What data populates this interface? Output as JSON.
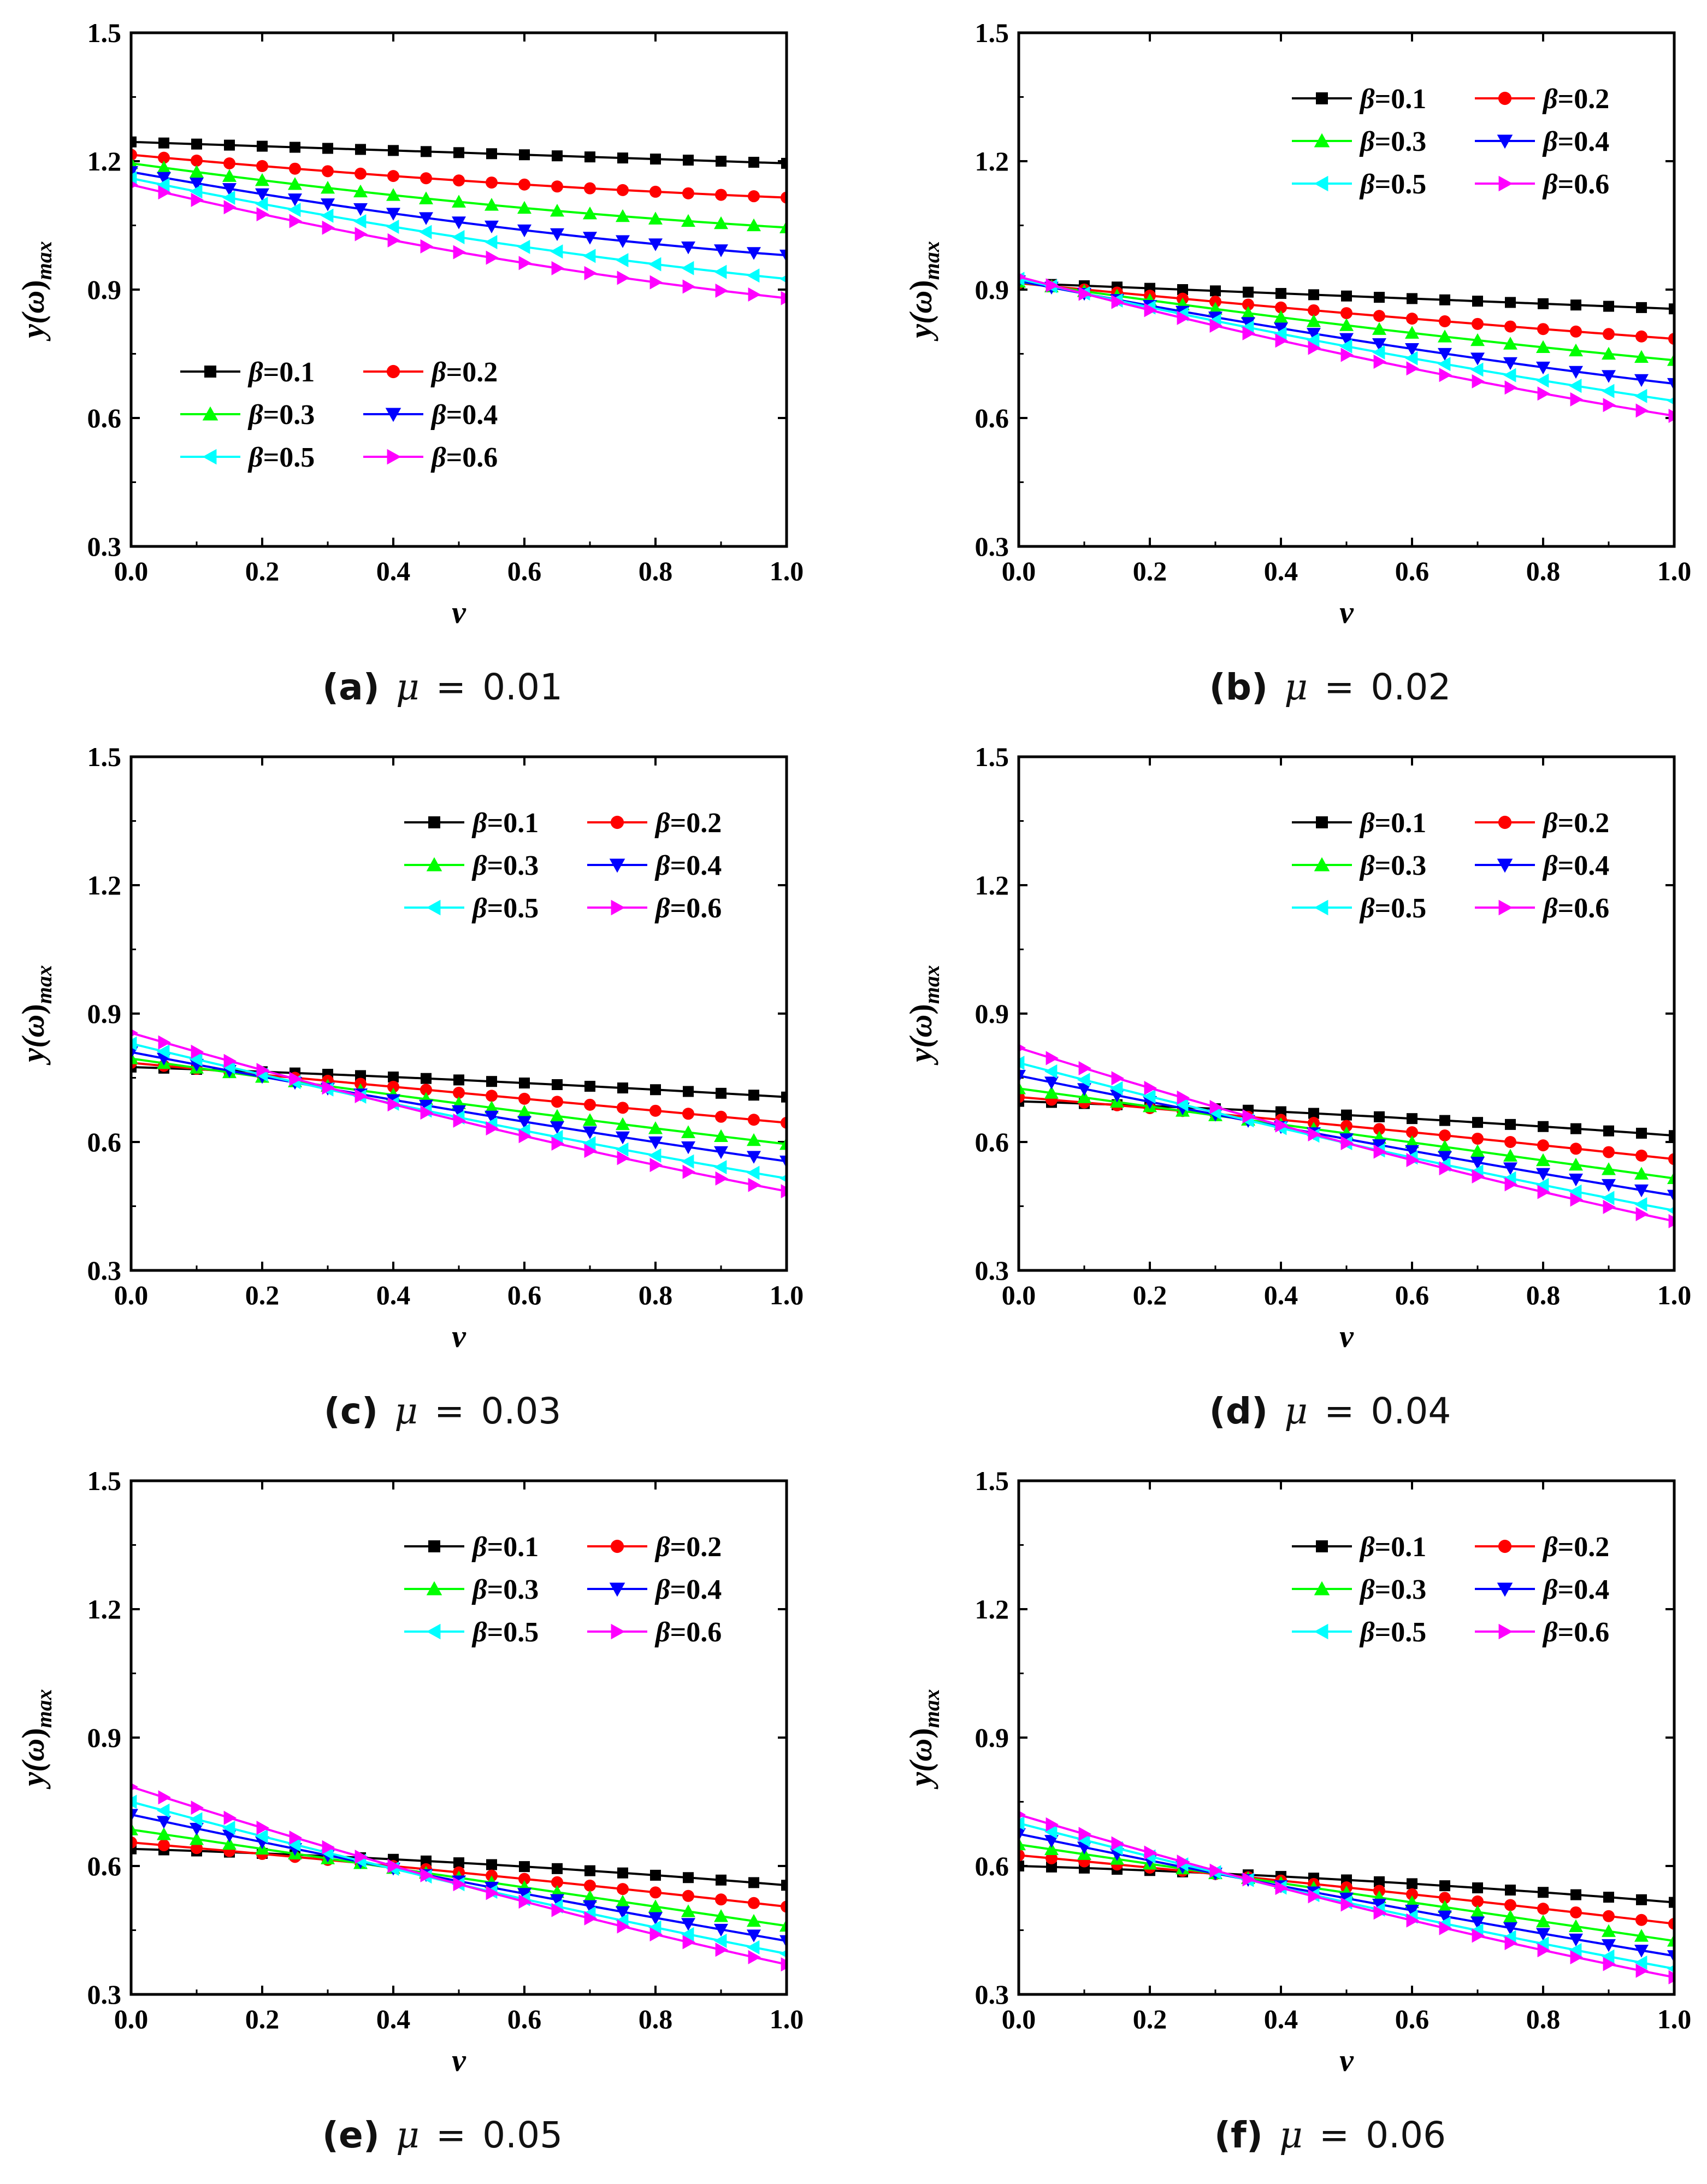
{
  "figure": {
    "series_colors": [
      "#000000",
      "#ff0000",
      "#00ff00",
      "#0000ff",
      "#00ffff",
      "#ff00ff"
    ],
    "marker_shapes": [
      "square",
      "circle",
      "triangle-up",
      "triangle-down",
      "triangle-left",
      "triangle-right"
    ]
  },
  "chart_data": [
    {
      "type": "line",
      "panel": "a",
      "caption": {
        "letter": "(a)",
        "mu_symbol": "μ",
        "equals": "=",
        "mu_value": "0.01"
      },
      "xlabel": "v",
      "ylabel": {
        "main": "y(",
        "omega": "ω",
        "close": ")",
        "sub": "max"
      },
      "xlim": [
        0,
        1
      ],
      "ylim": [
        0.3,
        1.5
      ],
      "xticks": [
        0,
        0.2,
        0.4,
        0.6,
        0.8,
        1.0
      ],
      "xtick_labels": [
        "0.0",
        "0.2",
        "0.4",
        "0.6",
        "0.8",
        "1.0"
      ],
      "yticks": [
        0.3,
        0.6,
        0.9,
        1.2,
        1.5
      ],
      "ytick_labels": [
        "0.3",
        "0.6",
        "0.9",
        "1.2",
        "1.5"
      ],
      "legend_position": "lower-left",
      "x": [
        0,
        0.05,
        0.1,
        0.15,
        0.2,
        0.25,
        0.3,
        0.35,
        0.4,
        0.45,
        0.5,
        0.55,
        0.6,
        0.65,
        0.7,
        0.75,
        0.8,
        0.85,
        0.9,
        0.95,
        1.0
      ],
      "series": [
        {
          "name": "β=0.1",
          "symbol": "β",
          "value_text": "=0.1",
          "start": 1.245,
          "end": 1.195,
          "curve": 0.0
        },
        {
          "name": "β=0.2",
          "symbol": "β",
          "value_text": "=0.2",
          "start": 1.215,
          "end": 1.115,
          "curve": 0.01
        },
        {
          "name": "β=0.3",
          "symbol": "β",
          "value_text": "=0.3",
          "start": 1.195,
          "end": 1.045,
          "curve": 0.015
        },
        {
          "name": "β=0.4",
          "symbol": "β",
          "value_text": "=0.4",
          "start": 1.175,
          "end": 0.98,
          "curve": 0.02
        },
        {
          "name": "β=0.5",
          "symbol": "β",
          "value_text": "=0.5",
          "start": 1.16,
          "end": 0.925,
          "curve": 0.02
        },
        {
          "name": "β=0.6",
          "symbol": "β",
          "value_text": "=0.6",
          "start": 1.145,
          "end": 0.88,
          "curve": 0.025
        }
      ]
    },
    {
      "type": "line",
      "panel": "b",
      "caption": {
        "letter": "(b)",
        "mu_symbol": "μ",
        "equals": "=",
        "mu_value": "0.02"
      },
      "xlabel": "v",
      "ylabel": {
        "main": "y(",
        "omega": "ω",
        "close": ")",
        "sub": "max"
      },
      "xlim": [
        0,
        1
      ],
      "ylim": [
        0.3,
        1.5
      ],
      "xticks": [
        0,
        0.2,
        0.4,
        0.6,
        0.8,
        1.0
      ],
      "xtick_labels": [
        "0.0",
        "0.2",
        "0.4",
        "0.6",
        "0.8",
        "1.0"
      ],
      "yticks": [
        0.3,
        0.6,
        0.9,
        1.2,
        1.5
      ],
      "ytick_labels": [
        "0.3",
        "0.6",
        "0.9",
        "1.2",
        "1.5"
      ],
      "legend_position": "top-right",
      "x": [
        0,
        0.05,
        0.1,
        0.15,
        0.2,
        0.25,
        0.3,
        0.35,
        0.4,
        0.45,
        0.5,
        0.55,
        0.6,
        0.65,
        0.7,
        0.75,
        0.8,
        0.85,
        0.9,
        0.95,
        1.0
      ],
      "series": [
        {
          "name": "β=0.1",
          "symbol": "β",
          "value_text": "=0.1",
          "start": 0.915,
          "end": 0.855,
          "curve": 0.0
        },
        {
          "name": "β=0.2",
          "symbol": "β",
          "value_text": "=0.2",
          "start": 0.915,
          "end": 0.785,
          "curve": 0.005
        },
        {
          "name": "β=0.3",
          "symbol": "β",
          "value_text": "=0.3",
          "start": 0.918,
          "end": 0.735,
          "curve": 0.01
        },
        {
          "name": "β=0.4",
          "symbol": "β",
          "value_text": "=0.4",
          "start": 0.92,
          "end": 0.68,
          "curve": 0.015
        },
        {
          "name": "β=0.5",
          "symbol": "β",
          "value_text": "=0.5",
          "start": 0.925,
          "end": 0.64,
          "curve": 0.015
        },
        {
          "name": "β=0.6",
          "symbol": "β",
          "value_text": "=0.6",
          "start": 0.93,
          "end": 0.605,
          "curve": 0.02
        }
      ]
    },
    {
      "type": "line",
      "panel": "c",
      "caption": {
        "letter": "(c)",
        "mu_symbol": "μ",
        "equals": "=",
        "mu_value": "0.03"
      },
      "xlabel": "v",
      "ylabel": {
        "main": "y(",
        "omega": "ω",
        "close": ")",
        "sub": "max"
      },
      "xlim": [
        0,
        1
      ],
      "ylim": [
        0.3,
        1.5
      ],
      "xticks": [
        0,
        0.2,
        0.4,
        0.6,
        0.8,
        1.0
      ],
      "xtick_labels": [
        "0.0",
        "0.2",
        "0.4",
        "0.6",
        "0.8",
        "1.0"
      ],
      "yticks": [
        0.3,
        0.6,
        0.9,
        1.2,
        1.5
      ],
      "ytick_labels": [
        "0.3",
        "0.6",
        "0.9",
        "1.2",
        "1.5"
      ],
      "legend_position": "top-right",
      "x": [
        0,
        0.05,
        0.1,
        0.15,
        0.2,
        0.25,
        0.3,
        0.35,
        0.4,
        0.45,
        0.5,
        0.55,
        0.6,
        0.65,
        0.7,
        0.75,
        0.8,
        0.85,
        0.9,
        0.95,
        1.0
      ],
      "series": [
        {
          "name": "β=0.1",
          "symbol": "β",
          "value_text": "=0.1",
          "start": 0.775,
          "end": 0.705,
          "curve": -0.005
        },
        {
          "name": "β=0.2",
          "symbol": "β",
          "value_text": "=0.2",
          "start": 0.785,
          "end": 0.645,
          "curve": 0.0
        },
        {
          "name": "β=0.3",
          "symbol": "β",
          "value_text": "=0.3",
          "start": 0.795,
          "end": 0.595,
          "curve": 0.005
        },
        {
          "name": "β=0.4",
          "symbol": "β",
          "value_text": "=0.4",
          "start": 0.81,
          "end": 0.555,
          "curve": 0.01
        },
        {
          "name": "β=0.5",
          "symbol": "β",
          "value_text": "=0.5",
          "start": 0.83,
          "end": 0.515,
          "curve": 0.015
        },
        {
          "name": "β=0.6",
          "symbol": "β",
          "value_text": "=0.6",
          "start": 0.855,
          "end": 0.485,
          "curve": 0.02
        }
      ]
    },
    {
      "type": "line",
      "panel": "d",
      "caption": {
        "letter": "(d)",
        "mu_symbol": "μ",
        "equals": "=",
        "mu_value": "0.04"
      },
      "xlabel": "v",
      "ylabel": {
        "main": "y(",
        "omega": "ω",
        "close": ")",
        "sub": "max"
      },
      "xlim": [
        0,
        1
      ],
      "ylim": [
        0.3,
        1.5
      ],
      "xticks": [
        0,
        0.2,
        0.4,
        0.6,
        0.8,
        1.0
      ],
      "xtick_labels": [
        "0.0",
        "0.2",
        "0.4",
        "0.6",
        "0.8",
        "1.0"
      ],
      "yticks": [
        0.3,
        0.6,
        0.9,
        1.2,
        1.5
      ],
      "ytick_labels": [
        "0.3",
        "0.6",
        "0.9",
        "1.2",
        "1.5"
      ],
      "legend_position": "top-right",
      "x": [
        0,
        0.05,
        0.1,
        0.15,
        0.2,
        0.25,
        0.3,
        0.35,
        0.4,
        0.45,
        0.5,
        0.55,
        0.6,
        0.65,
        0.7,
        0.75,
        0.8,
        0.85,
        0.9,
        0.95,
        1.0
      ],
      "series": [
        {
          "name": "β=0.1",
          "symbol": "β",
          "value_text": "=0.1",
          "start": 0.695,
          "end": 0.615,
          "curve": -0.008
        },
        {
          "name": "β=0.2",
          "symbol": "β",
          "value_text": "=0.2",
          "start": 0.705,
          "end": 0.56,
          "curve": -0.005
        },
        {
          "name": "β=0.3",
          "symbol": "β",
          "value_text": "=0.3",
          "start": 0.725,
          "end": 0.515,
          "curve": 0.0
        },
        {
          "name": "β=0.4",
          "symbol": "β",
          "value_text": "=0.4",
          "start": 0.755,
          "end": 0.475,
          "curve": 0.008
        },
        {
          "name": "β=0.5",
          "symbol": "β",
          "value_text": "=0.5",
          "start": 0.785,
          "end": 0.44,
          "curve": 0.015
        },
        {
          "name": "β=0.6",
          "symbol": "β",
          "value_text": "=0.6",
          "start": 0.82,
          "end": 0.415,
          "curve": 0.02
        }
      ]
    },
    {
      "type": "line",
      "panel": "e",
      "caption": {
        "letter": "(e)",
        "mu_symbol": "μ",
        "equals": "=",
        "mu_value": "0.05"
      },
      "xlabel": "v",
      "ylabel": {
        "main": "y(",
        "omega": "ω",
        "close": ")",
        "sub": "max"
      },
      "xlim": [
        0,
        1
      ],
      "ylim": [
        0.3,
        1.5
      ],
      "xticks": [
        0,
        0.2,
        0.4,
        0.6,
        0.8,
        1.0
      ],
      "xtick_labels": [
        "0.0",
        "0.2",
        "0.4",
        "0.6",
        "0.8",
        "1.0"
      ],
      "yticks": [
        0.3,
        0.6,
        0.9,
        1.2,
        1.5
      ],
      "ytick_labels": [
        "0.3",
        "0.6",
        "0.9",
        "1.2",
        "1.5"
      ],
      "legend_position": "top-right",
      "x": [
        0,
        0.05,
        0.1,
        0.15,
        0.2,
        0.25,
        0.3,
        0.35,
        0.4,
        0.45,
        0.5,
        0.55,
        0.6,
        0.65,
        0.7,
        0.75,
        0.8,
        0.85,
        0.9,
        0.95,
        1.0
      ],
      "series": [
        {
          "name": "β=0.1",
          "symbol": "β",
          "value_text": "=0.1",
          "start": 0.64,
          "end": 0.555,
          "curve": -0.01
        },
        {
          "name": "β=0.2",
          "symbol": "β",
          "value_text": "=0.2",
          "start": 0.655,
          "end": 0.505,
          "curve": -0.005
        },
        {
          "name": "β=0.3",
          "symbol": "β",
          "value_text": "=0.3",
          "start": 0.685,
          "end": 0.46,
          "curve": 0.0
        },
        {
          "name": "β=0.4",
          "symbol": "β",
          "value_text": "=0.4",
          "start": 0.72,
          "end": 0.425,
          "curve": 0.008
        },
        {
          "name": "β=0.5",
          "symbol": "β",
          "value_text": "=0.5",
          "start": 0.75,
          "end": 0.395,
          "curve": 0.015
        },
        {
          "name": "β=0.6",
          "symbol": "β",
          "value_text": "=0.6",
          "start": 0.785,
          "end": 0.37,
          "curve": 0.02
        }
      ]
    },
    {
      "type": "line",
      "panel": "f",
      "caption": {
        "letter": "(f)",
        "mu_symbol": "μ",
        "equals": "=",
        "mu_value": "0.06"
      },
      "xlabel": "v",
      "ylabel": {
        "main": "y(",
        "omega": "ω",
        "close": ")",
        "sub": "max"
      },
      "xlim": [
        0,
        1
      ],
      "ylim": [
        0.3,
        1.5
      ],
      "xticks": [
        0,
        0.2,
        0.4,
        0.6,
        0.8,
        1.0
      ],
      "xtick_labels": [
        "0.0",
        "0.2",
        "0.4",
        "0.6",
        "0.8",
        "1.0"
      ],
      "yticks": [
        0.3,
        0.6,
        0.9,
        1.2,
        1.5
      ],
      "ytick_labels": [
        "0.3",
        "0.6",
        "0.9",
        "1.2",
        "1.5"
      ],
      "legend_position": "top-right",
      "x": [
        0,
        0.05,
        0.1,
        0.15,
        0.2,
        0.25,
        0.3,
        0.35,
        0.4,
        0.45,
        0.5,
        0.55,
        0.6,
        0.65,
        0.7,
        0.75,
        0.8,
        0.85,
        0.9,
        0.95,
        1.0
      ],
      "series": [
        {
          "name": "β=0.1",
          "symbol": "β",
          "value_text": "=0.1",
          "start": 0.6,
          "end": 0.515,
          "curve": -0.01
        },
        {
          "name": "β=0.2",
          "symbol": "β",
          "value_text": "=0.2",
          "start": 0.625,
          "end": 0.465,
          "curve": -0.005
        },
        {
          "name": "β=0.3",
          "symbol": "β",
          "value_text": "=0.3",
          "start": 0.65,
          "end": 0.425,
          "curve": 0.0
        },
        {
          "name": "β=0.4",
          "symbol": "β",
          "value_text": "=0.4",
          "start": 0.675,
          "end": 0.39,
          "curve": 0.008
        },
        {
          "name": "β=0.5",
          "symbol": "β",
          "value_text": "=0.5",
          "start": 0.7,
          "end": 0.36,
          "curve": 0.015
        },
        {
          "name": "β=0.6",
          "symbol": "β",
          "value_text": "=0.6",
          "start": 0.72,
          "end": 0.34,
          "curve": 0.02
        }
      ]
    }
  ]
}
